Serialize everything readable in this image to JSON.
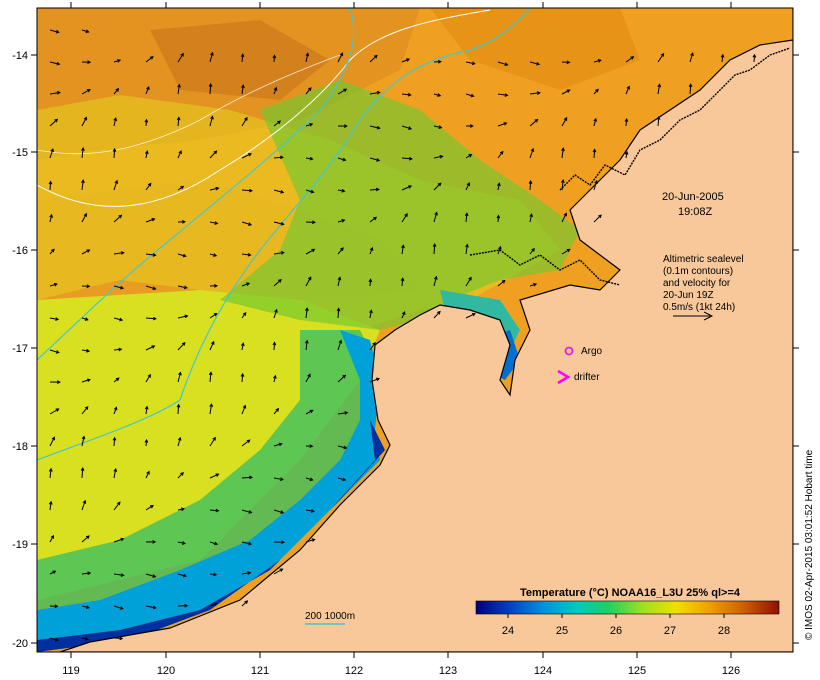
{
  "map": {
    "date": "20-Jun-2005",
    "time": "19:08Z",
    "legend_lines": [
      "Altimetric sealevel",
      "(0.1m contours)",
      "and velocity for",
      "20-Jun 19Z",
      "0.5m/s (1kt 24h)"
    ],
    "argo_label": "Argo",
    "drifter_label": "drifter",
    "isobath_label": "200  1000m",
    "credit": "© IMOS 02-Apr-2015 03:01:52 Hobart time",
    "lon_ticks": [
      "119",
      "120",
      "121",
      "122",
      "123",
      "124",
      "125",
      "126"
    ],
    "lat_ticks": [
      "-14",
      "-15",
      "-16",
      "-17",
      "-18",
      "-19",
      "-20"
    ],
    "colorbar": {
      "title": "Temperature (°C) NOAA16_L3U 25% ql>=4",
      "ticks": [
        "24",
        "25",
        "26",
        "27",
        "28"
      ],
      "range": [
        23.2,
        28.9
      ],
      "colors": [
        "#000080",
        "#0040c0",
        "#0090e0",
        "#00c8c0",
        "#20d060",
        "#a0e020",
        "#f0e000",
        "#f0a000",
        "#d06000",
        "#901000"
      ]
    },
    "colors": {
      "land": "#f9c89a",
      "coast": "#000000",
      "argo_marker": "#e020e0",
      "drifter_marker": "#ff00ff",
      "isobath": "#40c8d0"
    }
  }
}
